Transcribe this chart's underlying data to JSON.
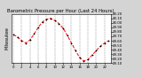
{
  "title": "Barometric Pressure per Hour (Last 24 Hours)",
  "background_color": "#d4d4d4",
  "plot_bg_color": "#ffffff",
  "line_color": "#ff0000",
  "marker_color": "#000000",
  "grid_color": "#888888",
  "hours": [
    0,
    1,
    2,
    3,
    4,
    5,
    6,
    7,
    8,
    9,
    10,
    11,
    12,
    13,
    14,
    15,
    16,
    17,
    18,
    19,
    20,
    21,
    22,
    23
  ],
  "pressure": [
    29.74,
    29.68,
    29.6,
    29.55,
    29.62,
    29.75,
    29.9,
    30.02,
    30.08,
    30.1,
    30.05,
    29.98,
    29.88,
    29.72,
    29.55,
    29.38,
    29.22,
    29.15,
    29.18,
    29.28,
    29.38,
    29.48,
    29.55,
    29.6
  ],
  "ylim_min": 29.1,
  "ylim_max": 30.2,
  "ytick_values": [
    29.1,
    29.2,
    29.3,
    29.4,
    29.5,
    29.6,
    29.7,
    29.8,
    29.9,
    30.0,
    30.1,
    30.2
  ],
  "ytick_labels": [
    "29.10",
    "29.20",
    "29.30",
    "29.40",
    "29.50",
    "29.60",
    "29.70",
    "29.80",
    "29.90",
    "30.00",
    "30.10",
    "30.20"
  ],
  "title_fontsize": 3.8,
  "tick_fontsize": 2.8,
  "ylabel_fontsize": 3.5,
  "line_width": 0.7,
  "marker_size": 1.8,
  "grid_linewidth": 0.35
}
